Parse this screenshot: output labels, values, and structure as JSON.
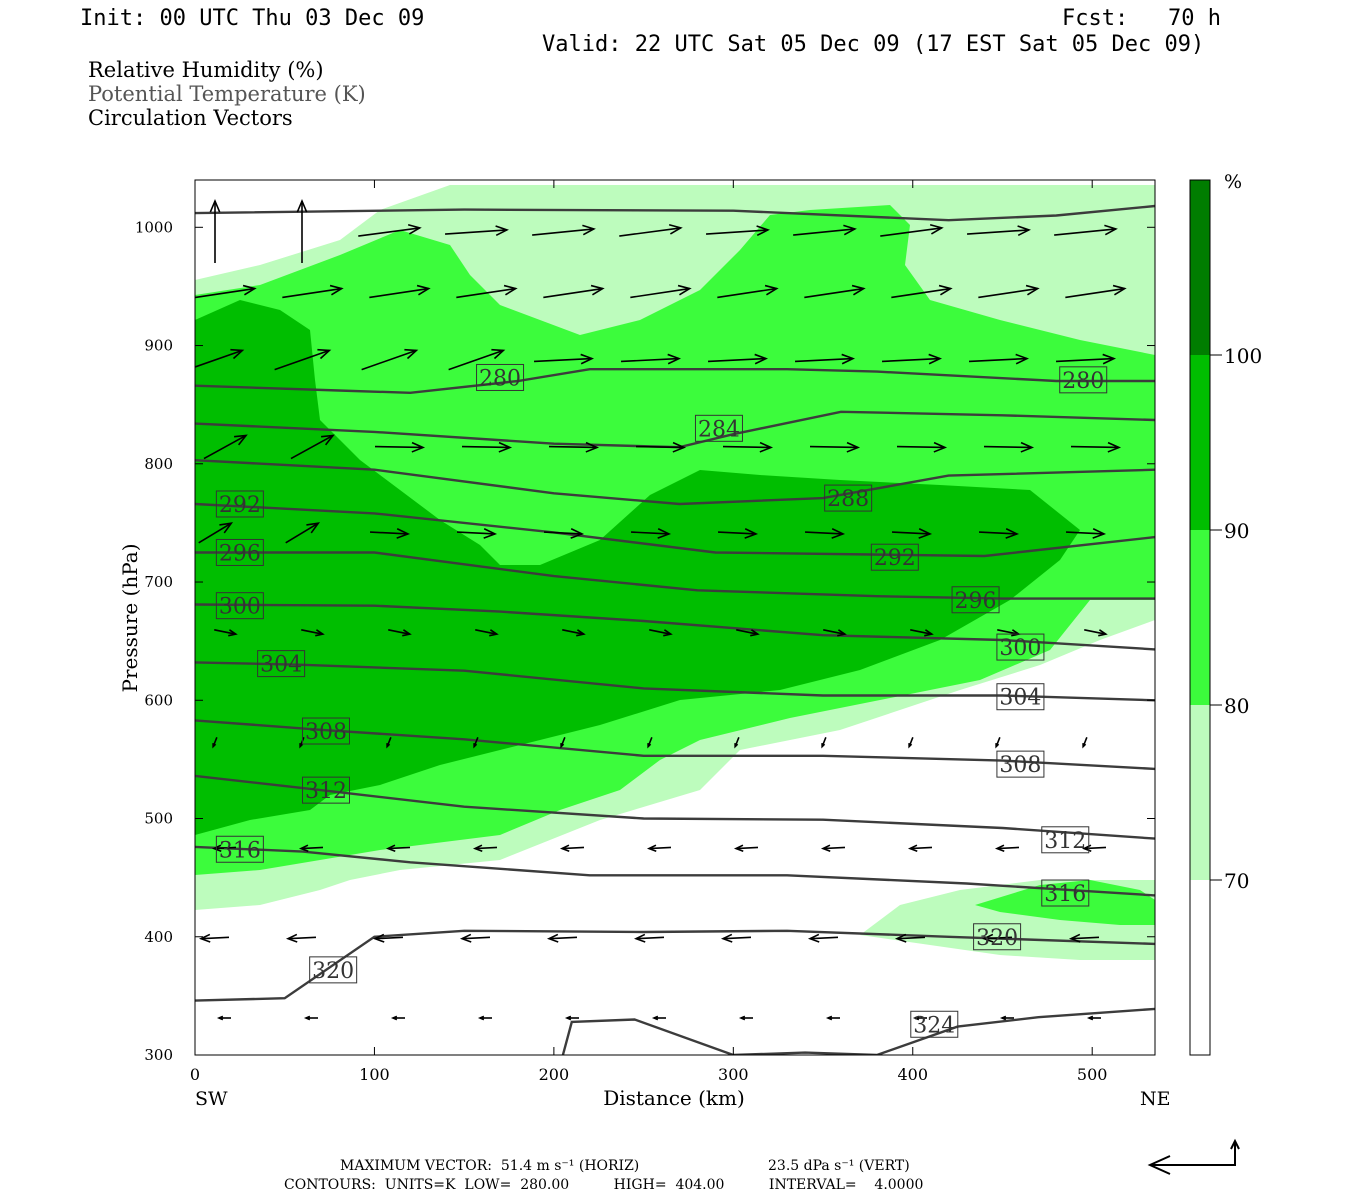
{
  "header": {
    "init": "Init: 00 UTC Thu 03 Dec 09",
    "fcst": "Fcst:   70 h",
    "valid": "Valid: 22 UTC Sat 05 Dec 09 (17 EST Sat 05 Dec 09)"
  },
  "titles": [
    "Relative Humidity (%)",
    "Potential Temperature (K)",
    "Circulation Vectors"
  ],
  "colors": {
    "rh70": "#bdfcbd",
    "rh80": "#3cfc3c",
    "rh90": "#00be00",
    "rh100": "#007d00",
    "theta": "#3c3c3c",
    "vector": "#000000"
  },
  "chart_data": {
    "type": "cross-section",
    "xlabel": "Distance (km)",
    "ylabel": "Pressure (hPa)",
    "xlim": [
      0,
      535
    ],
    "ylim": [
      1040,
      300
    ],
    "xticks": [
      0,
      100,
      200,
      300,
      400,
      500
    ],
    "yticks": [
      300,
      400,
      500,
      600,
      700,
      800,
      900,
      1000
    ],
    "x_endpoints": {
      "left": "SW",
      "right": "NE"
    },
    "colorbar": {
      "unit": "%",
      "levels": [
        70,
        80,
        90,
        100
      ]
    },
    "theta_contours": [
      {
        "label": "324",
        "label_at": [
          412,
          326
        ],
        "points": [
          [
            205,
            300
          ],
          [
            210,
            328
          ],
          [
            245,
            330
          ],
          [
            300,
            300
          ],
          [
            340,
            302
          ],
          [
            380,
            300
          ],
          [
            425,
            324
          ],
          [
            470,
            332
          ],
          [
            535,
            339
          ]
        ]
      },
      {
        "label": "320",
        "label_at": [
          77,
          372
        ],
        "points": [
          [
            0,
            346
          ],
          [
            50,
            348
          ],
          [
            100,
            400
          ],
          [
            150,
            405
          ],
          [
            250,
            404
          ],
          [
            330,
            405
          ],
          [
            420,
            400
          ],
          [
            535,
            394
          ]
        ]
      },
      {
        "label": "320",
        "label_at": [
          447,
          400
        ],
        "points": []
      },
      {
        "label": "316",
        "label_at": [
          25,
          474
        ],
        "points": [
          [
            0,
            476
          ],
          [
            60,
            472
          ],
          [
            120,
            463
          ],
          [
            220,
            452
          ],
          [
            330,
            452
          ],
          [
            430,
            445
          ],
          [
            535,
            435
          ]
        ]
      },
      {
        "label": "316",
        "label_at": [
          485,
          437
        ],
        "points": []
      },
      {
        "label": "312",
        "label_at": [
          73,
          524
        ],
        "points": [
          [
            0,
            536
          ],
          [
            70,
            524
          ],
          [
            150,
            510
          ],
          [
            250,
            500
          ],
          [
            350,
            499
          ],
          [
            450,
            492
          ],
          [
            535,
            483
          ]
        ]
      },
      {
        "label": "312",
        "label_at": [
          485,
          482
        ],
        "points": []
      },
      {
        "label": "308",
        "label_at": [
          73,
          574
        ],
        "points": [
          [
            0,
            583
          ],
          [
            70,
            575
          ],
          [
            150,
            567
          ],
          [
            250,
            553
          ],
          [
            350,
            553
          ],
          [
            450,
            549
          ],
          [
            535,
            542
          ]
        ]
      },
      {
        "label": "308",
        "label_at": [
          460,
          546
        ],
        "points": []
      },
      {
        "label": "304",
        "label_at": [
          48,
          631
        ],
        "points": [
          [
            0,
            632
          ],
          [
            60,
            630
          ],
          [
            150,
            625
          ],
          [
            250,
            610
          ],
          [
            350,
            604
          ],
          [
            450,
            604
          ],
          [
            535,
            600
          ]
        ]
      },
      {
        "label": "304",
        "label_at": [
          460,
          603
        ],
        "points": []
      },
      {
        "label": "300",
        "label_at": [
          25,
          680
        ],
        "points": [
          [
            0,
            681
          ],
          [
            100,
            680
          ],
          [
            170,
            675
          ],
          [
            250,
            667
          ],
          [
            350,
            655
          ],
          [
            450,
            651
          ],
          [
            535,
            643
          ]
        ]
      },
      {
        "label": "300",
        "label_at": [
          460,
          645
        ],
        "points": []
      },
      {
        "label": "296",
        "label_at": [
          25,
          725
        ],
        "points": [
          [
            0,
            725
          ],
          [
            100,
            725
          ],
          [
            200,
            705
          ],
          [
            280,
            693
          ],
          [
            380,
            688
          ],
          [
            450,
            686
          ],
          [
            535,
            686
          ]
        ]
      },
      {
        "label": "296",
        "label_at": [
          435,
          685
        ],
        "points": []
      },
      {
        "label": "292",
        "label_at": [
          25,
          766
        ],
        "points": [
          [
            0,
            766
          ],
          [
            100,
            758
          ],
          [
            200,
            742
          ],
          [
            290,
            725
          ],
          [
            390,
            723
          ],
          [
            440,
            722
          ],
          [
            535,
            738
          ]
        ]
      },
      {
        "label": "292",
        "label_at": [
          390,
          721
        ],
        "points": []
      },
      {
        "label": "288",
        "label_at": [
          364,
          771
        ],
        "points": [
          [
            0,
            803
          ],
          [
            100,
            795
          ],
          [
            200,
            775
          ],
          [
            270,
            766
          ],
          [
            350,
            771
          ],
          [
            420,
            790
          ],
          [
            535,
            795
          ]
        ]
      },
      {
        "label": "284",
        "label_at": [
          292,
          830
        ],
        "points": [
          [
            0,
            834
          ],
          [
            100,
            827
          ],
          [
            200,
            817
          ],
          [
            270,
            814
          ],
          [
            300,
            825
          ],
          [
            360,
            844
          ],
          [
            450,
            841
          ],
          [
            535,
            837
          ]
        ]
      },
      {
        "label": "280",
        "label_at": [
          170,
          873
        ],
        "points": [
          [
            0,
            866
          ],
          [
            80,
            862
          ],
          [
            120,
            860
          ],
          [
            180,
            870
          ],
          [
            220,
            880
          ],
          [
            330,
            880
          ],
          [
            380,
            878
          ],
          [
            480,
            870
          ],
          [
            535,
            870
          ]
        ]
      },
      {
        "label": "280",
        "label_at": [
          495,
          871
        ],
        "points": []
      },
      {
        "label": "",
        "label_at": null,
        "points": [
          [
            0,
            1012
          ],
          [
            150,
            1015
          ],
          [
            300,
            1014
          ],
          [
            420,
            1006
          ],
          [
            480,
            1010
          ],
          [
            535,
            1018
          ]
        ]
      }
    ],
    "vector_summary": {
      "max_vector": "MAXIMUM VECTOR:  51.4 m s⁻¹ (HORIZ)",
      "max_vert": "23.5 dPa s⁻¹ (VERT)",
      "contours_line": "CONTOURS:  UNITS=K  LOW=  280.00          HIGH=  404.00          INTERVAL=    4.0000"
    }
  }
}
